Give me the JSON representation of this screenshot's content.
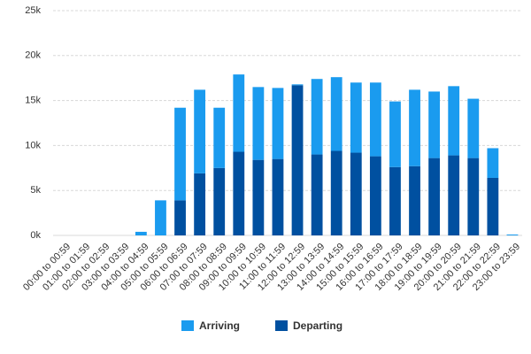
{
  "chart_data": {
    "type": "stacked_bar",
    "categories": [
      "00:00 to 00:59",
      "01:00 to 01:59",
      "02:00 to 02:59",
      "03:00 to 03:59",
      "04:00 to 04:59",
      "05:00 to 05:59",
      "06:00 to 06:59",
      "07:00 to 07:59",
      "08:00 to 08:59",
      "09:00 to 09:59",
      "10:00 to 10:59",
      "11:00 to 11:59",
      "12:00 to 12:59",
      "13:00 to 13:59",
      "14:00 to 14:59",
      "15:00 to 15:59",
      "16:00 to 16:59",
      "17:00 to 17:59",
      "18:00 to 18:59",
      "19:00 to 19:59",
      "20:00 to 20:59",
      "21:00 to 21:59",
      "22:00 to 22:59",
      "23:00 to 23:59"
    ],
    "series": [
      {
        "name": "Departing",
        "color": "#0050a0",
        "values": [
          0,
          0,
          0,
          0,
          0,
          0,
          3900,
          6900,
          7500,
          9300,
          8400,
          8500,
          16700,
          9000,
          9400,
          9200,
          8800,
          7600,
          7700,
          8600,
          8900,
          8600,
          6400,
          0
        ]
      },
      {
        "name": "Arriving",
        "color": "#1a9bef",
        "values": [
          0,
          0,
          0,
          0,
          400,
          3900,
          10300,
          9300,
          6700,
          8600,
          8100,
          7900,
          100,
          8400,
          8200,
          7800,
          8200,
          7300,
          8500,
          7400,
          7700,
          6600,
          3300,
          100
        ]
      }
    ],
    "ylim": [
      0,
      25000
    ],
    "yticks": [
      {
        "value": 0,
        "label": "0k"
      },
      {
        "value": 5000,
        "label": "5k"
      },
      {
        "value": 10000,
        "label": "10k"
      },
      {
        "value": 15000,
        "label": "15k"
      },
      {
        "value": 20000,
        "label": "20k"
      },
      {
        "value": 25000,
        "label": "25k"
      }
    ],
    "grid": true,
    "legend": "bottom"
  }
}
